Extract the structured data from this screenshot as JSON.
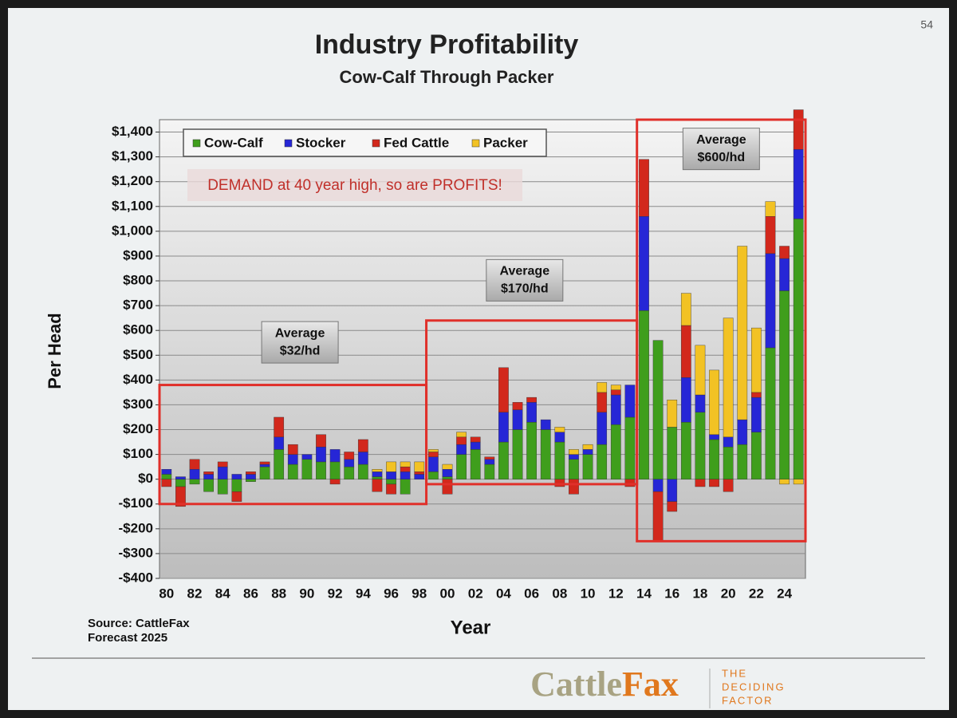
{
  "slide": {
    "page_number": "54",
    "source": [
      "Source: CattleFax",
      "Forecast 2025"
    ],
    "logo": [
      "Cattle",
      "Fax"
    ],
    "tagline": [
      "THE",
      "DECIDING",
      "FACTOR"
    ]
  },
  "chart_data": {
    "type": "bar",
    "stacked": true,
    "title": "Industry Profitability",
    "subtitle": "Cow-Calf Through Packer",
    "x_label": "Year",
    "y_label": "Per Head",
    "annotation": "DEMAND at 40 year high, so are PROFITS!",
    "average_boxes": [
      [
        "Average",
        "$32/hd"
      ],
      [
        "Average",
        "$170/hd"
      ],
      [
        "Average",
        "$600/hd"
      ]
    ],
    "categories": [
      "80",
      null,
      "82",
      null,
      "84",
      null,
      "86",
      null,
      "88",
      null,
      "90",
      null,
      "92",
      null,
      "94",
      null,
      "96",
      null,
      "98",
      null,
      "00",
      null,
      "02",
      null,
      "04",
      null,
      "06",
      null,
      "08",
      null,
      "10",
      null,
      "12",
      null,
      "14",
      null,
      "16",
      null,
      "18",
      null,
      "20",
      null,
      "22",
      null,
      "24",
      null
    ],
    "series": [
      {
        "name": "Cow-Calf",
        "color": "#3f9e1c",
        "values": [
          20,
          -30,
          -20,
          -50,
          -60,
          -50,
          -10,
          50,
          120,
          60,
          80,
          70,
          70,
          50,
          60,
          10,
          -20,
          -60,
          0,
          30,
          10,
          100,
          120,
          60,
          150,
          200,
          230,
          200,
          150,
          80,
          100,
          140,
          220,
          250,
          680,
          560,
          210,
          230,
          270,
          160,
          130,
          140,
          190,
          530,
          760,
          1050
        ]
      },
      {
        "name": "Stocker",
        "color": "#2626d6",
        "values": [
          20,
          10,
          40,
          20,
          50,
          20,
          20,
          10,
          50,
          40,
          20,
          60,
          50,
          30,
          50,
          20,
          30,
          30,
          20,
          60,
          30,
          40,
          30,
          20,
          120,
          80,
          80,
          40,
          40,
          20,
          20,
          130,
          120,
          130,
          380,
          -50,
          -90,
          180,
          70,
          20,
          40,
          100,
          140,
          380,
          130,
          280
        ]
      },
      {
        "name": "Fed Cattle",
        "color": "#d2281c",
        "values": [
          -30,
          -80,
          40,
          10,
          20,
          -40,
          10,
          10,
          80,
          40,
          0,
          50,
          -20,
          30,
          50,
          -50,
          -40,
          20,
          10,
          20,
          -60,
          30,
          20,
          10,
          180,
          30,
          20,
          0,
          -30,
          -60,
          0,
          80,
          20,
          -30,
          230,
          -200,
          -40,
          210,
          -30,
          -30,
          -50,
          0,
          20,
          150,
          50,
          160
        ]
      },
      {
        "name": "Packer",
        "color": "#f2c224",
        "values": [
          0,
          0,
          0,
          0,
          0,
          0,
          0,
          0,
          0,
          0,
          0,
          0,
          0,
          0,
          0,
          10,
          40,
          20,
          40,
          10,
          20,
          20,
          0,
          0,
          0,
          0,
          0,
          0,
          20,
          20,
          20,
          40,
          20,
          0,
          0,
          0,
          110,
          130,
          200,
          260,
          480,
          700,
          260,
          60,
          -20,
          -20
        ]
      }
    ],
    "ylim": [
      -400,
      1450
    ],
    "yticks": [
      {
        "value": -400,
        "label": "-$400"
      },
      {
        "value": -300,
        "label": "-$300"
      },
      {
        "value": -200,
        "label": "-$200"
      },
      {
        "value": -100,
        "label": "-$100"
      },
      {
        "value": 0,
        "label": "$0"
      },
      {
        "value": 100,
        "label": "$100"
      },
      {
        "value": 200,
        "label": "$200"
      },
      {
        "value": 300,
        "label": "$300"
      },
      {
        "value": 400,
        "label": "$400"
      },
      {
        "value": 500,
        "label": "$500"
      },
      {
        "value": 600,
        "label": "$600"
      },
      {
        "value": 700,
        "label": "$700"
      },
      {
        "value": 800,
        "label": "$800"
      },
      {
        "value": 900,
        "label": "$900"
      },
      {
        "value": 1000,
        "label": "$1,000"
      },
      {
        "value": 1100,
        "label": "$1,100"
      },
      {
        "value": 1200,
        "label": "$1,200"
      },
      {
        "value": 1300,
        "label": "$1,300"
      },
      {
        "value": 1400,
        "label": "$1,400"
      }
    ],
    "grid": true,
    "legend": "top-left"
  }
}
